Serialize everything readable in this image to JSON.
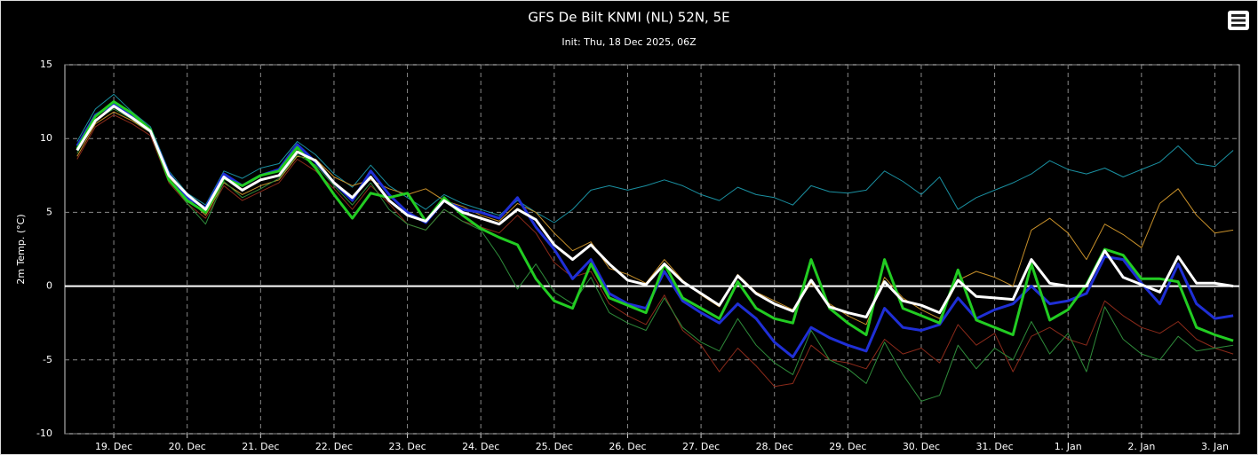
{
  "chart_data": {
    "type": "line",
    "title": "GFS De Bilt KNMI (NL) 52N, 5E",
    "subtitle": "Init: Thu, 18 Dec 2025, 06Z",
    "y_label": "2m Temp. (°C)",
    "x": [
      "2025-12-18T12:00Z",
      "2025-12-18T18:00Z",
      "2025-12-19T00:00Z",
      "2025-12-19T06:00Z",
      "2025-12-19T12:00Z",
      "2025-12-19T18:00Z",
      "2025-12-20T00:00Z",
      "2025-12-20T06:00Z",
      "2025-12-20T12:00Z",
      "2025-12-20T18:00Z",
      "2025-12-21T00:00Z",
      "2025-12-21T06:00Z",
      "2025-12-21T12:00Z",
      "2025-12-21T18:00Z",
      "2025-12-22T00:00Z",
      "2025-12-22T06:00Z",
      "2025-12-22T12:00Z",
      "2025-12-22T18:00Z",
      "2025-12-23T00:00Z",
      "2025-12-23T06:00Z",
      "2025-12-23T12:00Z",
      "2025-12-23T18:00Z",
      "2025-12-24T00:00Z",
      "2025-12-24T06:00Z",
      "2025-12-24T12:00Z",
      "2025-12-24T18:00Z",
      "2025-12-25T00:00Z",
      "2025-12-25T06:00Z",
      "2025-12-25T12:00Z",
      "2025-12-25T18:00Z",
      "2025-12-26T00:00Z",
      "2025-12-26T06:00Z",
      "2025-12-26T12:00Z",
      "2025-12-26T18:00Z",
      "2025-12-27T00:00Z",
      "2025-12-27T06:00Z",
      "2025-12-27T12:00Z",
      "2025-12-27T18:00Z",
      "2025-12-28T00:00Z",
      "2025-12-28T06:00Z",
      "2025-12-28T12:00Z",
      "2025-12-28T18:00Z",
      "2025-12-29T00:00Z",
      "2025-12-29T06:00Z",
      "2025-12-29T12:00Z",
      "2025-12-29T18:00Z",
      "2025-12-30T00:00Z",
      "2025-12-30T06:00Z",
      "2025-12-30T12:00Z",
      "2025-12-30T18:00Z",
      "2025-12-31T00:00Z",
      "2025-12-31T06:00Z",
      "2025-12-31T12:00Z",
      "2025-12-31T18:00Z",
      "2026-01-01T00:00Z",
      "2026-01-01T06:00Z",
      "2026-01-01T12:00Z",
      "2026-01-01T18:00Z",
      "2026-01-02T00:00Z",
      "2026-01-02T06:00Z",
      "2026-01-02T12:00Z",
      "2026-01-02T18:00Z",
      "2026-01-03T00:00Z",
      "2026-01-03T06:00Z"
    ],
    "xlim": [
      "2025-12-18T08:00Z",
      "2026-01-03T08:00Z"
    ],
    "xticks": [
      {
        "value": "2025-12-19T00:00Z",
        "label": "19. Dec"
      },
      {
        "value": "2025-12-20T00:00Z",
        "label": "20. Dec"
      },
      {
        "value": "2025-12-21T00:00Z",
        "label": "21. Dec"
      },
      {
        "value": "2025-12-22T00:00Z",
        "label": "22. Dec"
      },
      {
        "value": "2025-12-23T00:00Z",
        "label": "23. Dec"
      },
      {
        "value": "2025-12-24T00:00Z",
        "label": "24. Dec"
      },
      {
        "value": "2025-12-25T00:00Z",
        "label": "25. Dec"
      },
      {
        "value": "2025-12-26T00:00Z",
        "label": "26. Dec"
      },
      {
        "value": "2025-12-27T00:00Z",
        "label": "27. Dec"
      },
      {
        "value": "2025-12-28T00:00Z",
        "label": "28. Dec"
      },
      {
        "value": "2025-12-29T00:00Z",
        "label": "29. Dec"
      },
      {
        "value": "2025-12-30T00:00Z",
        "label": "30. Dec"
      },
      {
        "value": "2025-12-31T00:00Z",
        "label": "31. Dec"
      },
      {
        "value": "2026-01-01T00:00Z",
        "label": "1. Jan"
      },
      {
        "value": "2026-01-02T00:00Z",
        "label": "2. Jan"
      },
      {
        "value": "2026-01-03T00:00Z",
        "label": "3. Jan"
      }
    ],
    "ylim": [
      -10,
      15
    ],
    "yticks": [
      -10,
      -5,
      0,
      5,
      10,
      15
    ],
    "grid": true,
    "series": [
      {
        "color": "#1a8fa0",
        "width": 1,
        "values": [
          9.8,
          12,
          13,
          11.8,
          10.8,
          7.8,
          6.3,
          5.5,
          7.8,
          7.3,
          8,
          8.3,
          9.8,
          8.9,
          7.6,
          6.7,
          8.2,
          6.8,
          6,
          5.2,
          6.2,
          5.6,
          5.2,
          4.8,
          5.8,
          5,
          4.3,
          5.2,
          6.5,
          6.8,
          6.5,
          6.8,
          7.2,
          6.8,
          6.2,
          5.8,
          6.7,
          6.2,
          6,
          5.5,
          6.8,
          6.4,
          6.3,
          6.5,
          7.8,
          7.1,
          6.2,
          7.4,
          5.2,
          6,
          6.5,
          7,
          7.6,
          8.5,
          7.9,
          7.6,
          8,
          7.4,
          7.9,
          8.4,
          9.5,
          8.3,
          8.1,
          9.2
        ]
      },
      {
        "color": "#c8902a",
        "width": 1,
        "values": [
          8.8,
          11,
          11.8,
          11.2,
          10.4,
          7.4,
          6,
          4.8,
          7,
          6.2,
          6.8,
          7.2,
          8.8,
          8.6,
          7.4,
          6.8,
          7.2,
          6.6,
          6.2,
          6.6,
          5.8,
          5.4,
          4.8,
          4.4,
          5.6,
          5,
          3.6,
          2.4,
          3,
          1.2,
          0.8,
          0.2,
          1.8,
          0.4,
          -0.6,
          -1.4,
          0.8,
          -0.4,
          -1,
          -1.6,
          0.2,
          -1.2,
          -2,
          -2.6,
          0.6,
          -0.8,
          -1.6,
          -2.2,
          0.4,
          1,
          0.6,
          0,
          3.8,
          4.6,
          3.6,
          1.8,
          4.2,
          3.5,
          2.6,
          5.6,
          6.6,
          4.8,
          3.6,
          3.8
        ]
      },
      {
        "color": "#8b2a1a",
        "width": 1,
        "values": [
          8.6,
          10.8,
          11.6,
          11,
          10.2,
          7,
          5.6,
          4.6,
          6.8,
          5.8,
          6.4,
          7,
          8.6,
          7.8,
          6.6,
          5.2,
          6.8,
          5.6,
          4.2,
          3.8,
          5.2,
          4.4,
          4,
          3.6,
          4.8,
          3.6,
          1.6,
          0.6,
          1,
          -1.2,
          -2,
          -2.6,
          -0.6,
          -3,
          -4,
          -5.8,
          -4.2,
          -5.4,
          -6.8,
          -6.6,
          -4,
          -5,
          -5.2,
          -5.6,
          -3.6,
          -4.6,
          -4.2,
          -5.2,
          -2.6,
          -4,
          -3.2,
          -5.8,
          -3.4,
          -2.8,
          -3.6,
          -4,
          -1,
          -2,
          -2.8,
          -3.2,
          -2.4,
          -3.6,
          -4.2,
          -4.6
        ]
      },
      {
        "color": "#2e8b3a",
        "width": 1,
        "values": [
          9,
          11.3,
          12,
          11.3,
          10.4,
          7.3,
          5.6,
          4.2,
          7.1,
          6,
          6.6,
          7.3,
          8.9,
          8.2,
          6.8,
          5.5,
          7,
          5.2,
          4.2,
          3.8,
          5.2,
          4.4,
          3.8,
          2,
          -0.2,
          1.5,
          -0.4,
          -1.2,
          0.6,
          -1.8,
          -2.5,
          -3,
          -0.8,
          -2.8,
          -3.8,
          -4.4,
          -2.2,
          -4,
          -5.2,
          -6,
          -3,
          -5,
          -5.6,
          -6.6,
          -3.8,
          -6,
          -7.8,
          -7.4,
          -4,
          -5.6,
          -4.2,
          -5,
          -2.4,
          -4.6,
          -3.2,
          -5.8,
          -1.4,
          -3.6,
          -4.6,
          -5,
          -3.4,
          -4.4,
          -4.2,
          -4
        ]
      },
      {
        "color": "#1f2fd6",
        "width": 3,
        "values": [
          9.5,
          11.6,
          12.3,
          11.5,
          10.5,
          7.6,
          6,
          5.3,
          7.6,
          6.8,
          7.5,
          7.9,
          9.6,
          8.4,
          7,
          5.8,
          7.8,
          6.2,
          5,
          4.3,
          5.8,
          5.2,
          5,
          4.6,
          6,
          4,
          2.5,
          0.5,
          1.8,
          -0.5,
          -1.2,
          -1.5,
          1,
          -1,
          -1.8,
          -2.5,
          -1.2,
          -2.2,
          -3.8,
          -4.8,
          -2.8,
          -3.5,
          -4,
          -4.4,
          -1.5,
          -2.8,
          -3,
          -2.6,
          -0.8,
          -2.2,
          -1.6,
          -1.2,
          0,
          -1.2,
          -1,
          -0.5,
          2,
          1.8,
          0.2,
          -1.2,
          1.5,
          -1.2,
          -2.2,
          -2
        ]
      },
      {
        "color": "#22cc22",
        "width": 3,
        "values": [
          9.3,
          11.5,
          12.5,
          11.7,
          10.6,
          7.2,
          5.8,
          5,
          7.3,
          6.8,
          7.5,
          7.8,
          9.4,
          8,
          6.2,
          4.6,
          6.3,
          6,
          6.3,
          4.4,
          6,
          4.8,
          3.9,
          3.3,
          2.8,
          0.5,
          -1,
          -1.5,
          1.5,
          -0.8,
          -1.3,
          -1.8,
          1.5,
          -0.8,
          -1.5,
          -2.2,
          0.3,
          -1.5,
          -2.2,
          -2.5,
          1.8,
          -1.5,
          -2.5,
          -3.3,
          1.8,
          -1.5,
          -2,
          -2.5,
          1.1,
          -2.3,
          -2.8,
          -3.3,
          1.5,
          -2.3,
          -1.6,
          0.1,
          2.5,
          2.1,
          0.5,
          0.5,
          0.3,
          -2.8,
          -3.3,
          -3.7
        ]
      },
      {
        "color": "#ffffff",
        "width": 3,
        "values": [
          9.2,
          11.2,
          12.2,
          11.4,
          10.5,
          7.5,
          6.2,
          5.2,
          7.4,
          6.5,
          7.2,
          7.5,
          9.1,
          8.5,
          7,
          6,
          7.4,
          5.8,
          4.8,
          4.4,
          5.8,
          5,
          4.6,
          4.2,
          5.2,
          4.5,
          2.8,
          1.8,
          2.8,
          1.5,
          0.4,
          0.1,
          1.5,
          0.3,
          -0.5,
          -1.3,
          0.7,
          -0.5,
          -1.2,
          -1.7,
          0.4,
          -1.4,
          -1.8,
          -2.1,
          0.3,
          -1,
          -1.3,
          -1.8,
          0.4,
          -0.7,
          -0.8,
          -0.9,
          1.8,
          0.2,
          0,
          0,
          2.4,
          0.6,
          0.1,
          -0.4,
          2,
          0.2,
          0.2,
          0
        ]
      }
    ]
  }
}
